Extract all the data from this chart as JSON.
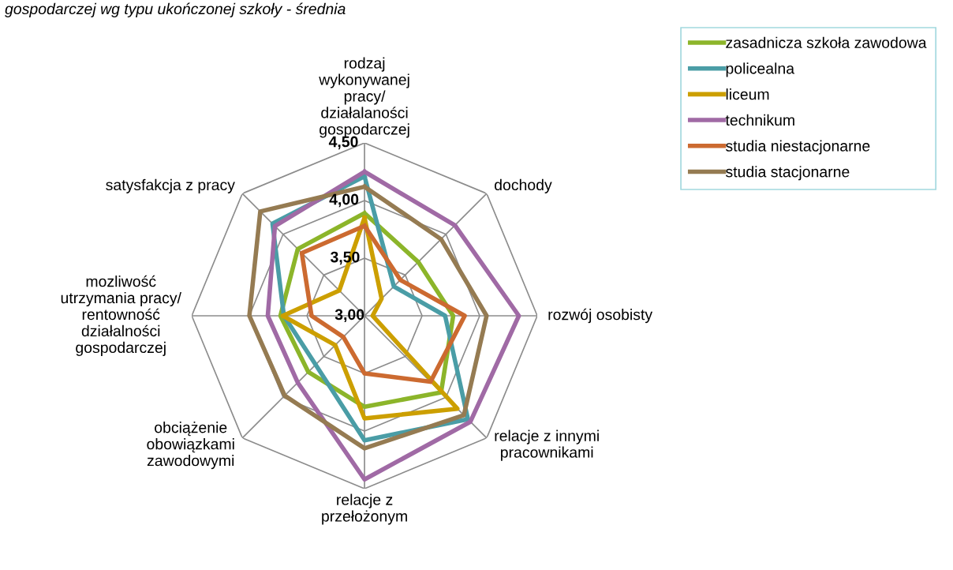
{
  "chart_data": {
    "type": "radar",
    "title": "gospodarczej wg typu ukończonej szkoły - średnia",
    "categories": [
      "rodzaj\nwykonywanej\npracy/\ndziałalaności\ngospodarczej",
      "dochody",
      "rozwój osobisty",
      "relacje z innymi\npracownikami",
      "relacje z\nprzełożonym",
      "obciążenie\nobowiązkami\nzawodowymi",
      "mozliwość\nutrzymania pracy/\nrentowność\ndziałalności\ngospodarczej",
      "satysfakcja z pracy"
    ],
    "series": [
      {
        "name": "zasadnicza szkoła zawodowa",
        "color": "#8cb52a",
        "values": [
          3.89,
          3.66,
          3.77,
          3.94,
          3.79,
          3.69,
          3.73,
          3.82
        ]
      },
      {
        "name": "policealna",
        "color": "#4a9da6",
        "values": [
          4.21,
          3.36,
          3.7,
          4.27,
          4.08,
          3.6,
          3.7,
          4.13
        ]
      },
      {
        "name": "liceum",
        "color": "#cc9f00",
        "values": [
          3.85,
          3.21,
          3.07,
          4.14,
          3.89,
          3.36,
          3.71,
          3.31
        ]
      },
      {
        "name": "technikum",
        "color": "#a06aa5",
        "values": [
          4.25,
          4.11,
          4.34,
          4.3,
          4.42,
          3.82,
          3.84,
          4.1
        ]
      },
      {
        "name": "studia niestacjonarne",
        "color": "#cc6a30",
        "values": [
          3.78,
          3.44,
          3.87,
          3.81,
          3.5,
          3.26,
          3.46,
          3.77
        ]
      },
      {
        "name": "studia stacjonarne",
        "color": "#957b52",
        "values": [
          4.12,
          3.94,
          4.06,
          4.22,
          4.15,
          3.98,
          4.0,
          4.28
        ]
      }
    ],
    "ylim": [
      3.0,
      4.5
    ],
    "yticks": [
      {
        "value": 3.0,
        "label": "3,00"
      },
      {
        "value": 3.5,
        "label": "3,50"
      },
      {
        "value": 4.0,
        "label": "4,00"
      },
      {
        "value": 4.5,
        "label": "4,50"
      }
    ],
    "grid": true,
    "legend": "top right",
    "marker": "none",
    "line_style": "solid"
  }
}
